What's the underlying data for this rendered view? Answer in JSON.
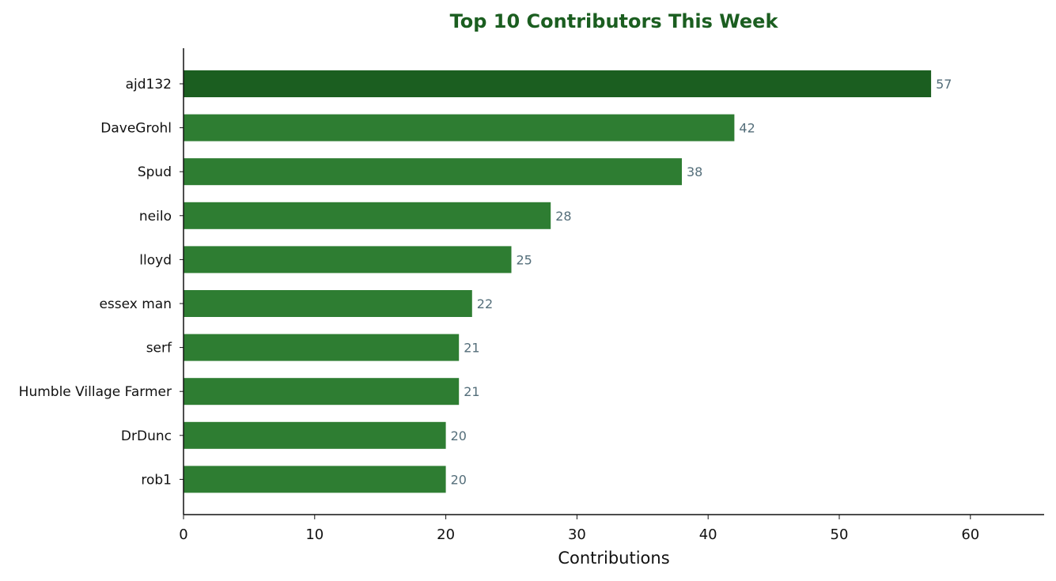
{
  "colors": {
    "title": "#1b5e20",
    "top_bar": "#1b5e20",
    "bar": "#2e7d32",
    "value_label": "#546e7a",
    "axis": "#111111"
  },
  "chart_data": {
    "type": "bar",
    "orientation": "horizontal",
    "title": "Top 10 Contributors This Week",
    "xlabel": "Contributions",
    "ylabel": "",
    "categories": [
      "ajd132",
      "DaveGrohl",
      "Spud",
      "neilo",
      "lloyd",
      "essex man",
      "serf",
      "Humble Village Farmer",
      "DrDunc",
      "rob1"
    ],
    "values": [
      57,
      42,
      38,
      28,
      25,
      22,
      21,
      21,
      20,
      20
    ],
    "value_labels": [
      "57",
      "42",
      "38",
      "28",
      "25",
      "22",
      "21",
      "21",
      "20",
      "20"
    ],
    "xlim": [
      0,
      65.5
    ],
    "xticks": [
      0,
      10,
      20,
      30,
      40,
      50,
      60
    ],
    "xtick_labels": [
      "0",
      "10",
      "20",
      "30",
      "40",
      "50",
      "60"
    ],
    "grid": false,
    "legend": "none",
    "highlight": "top bar in darker green"
  }
}
